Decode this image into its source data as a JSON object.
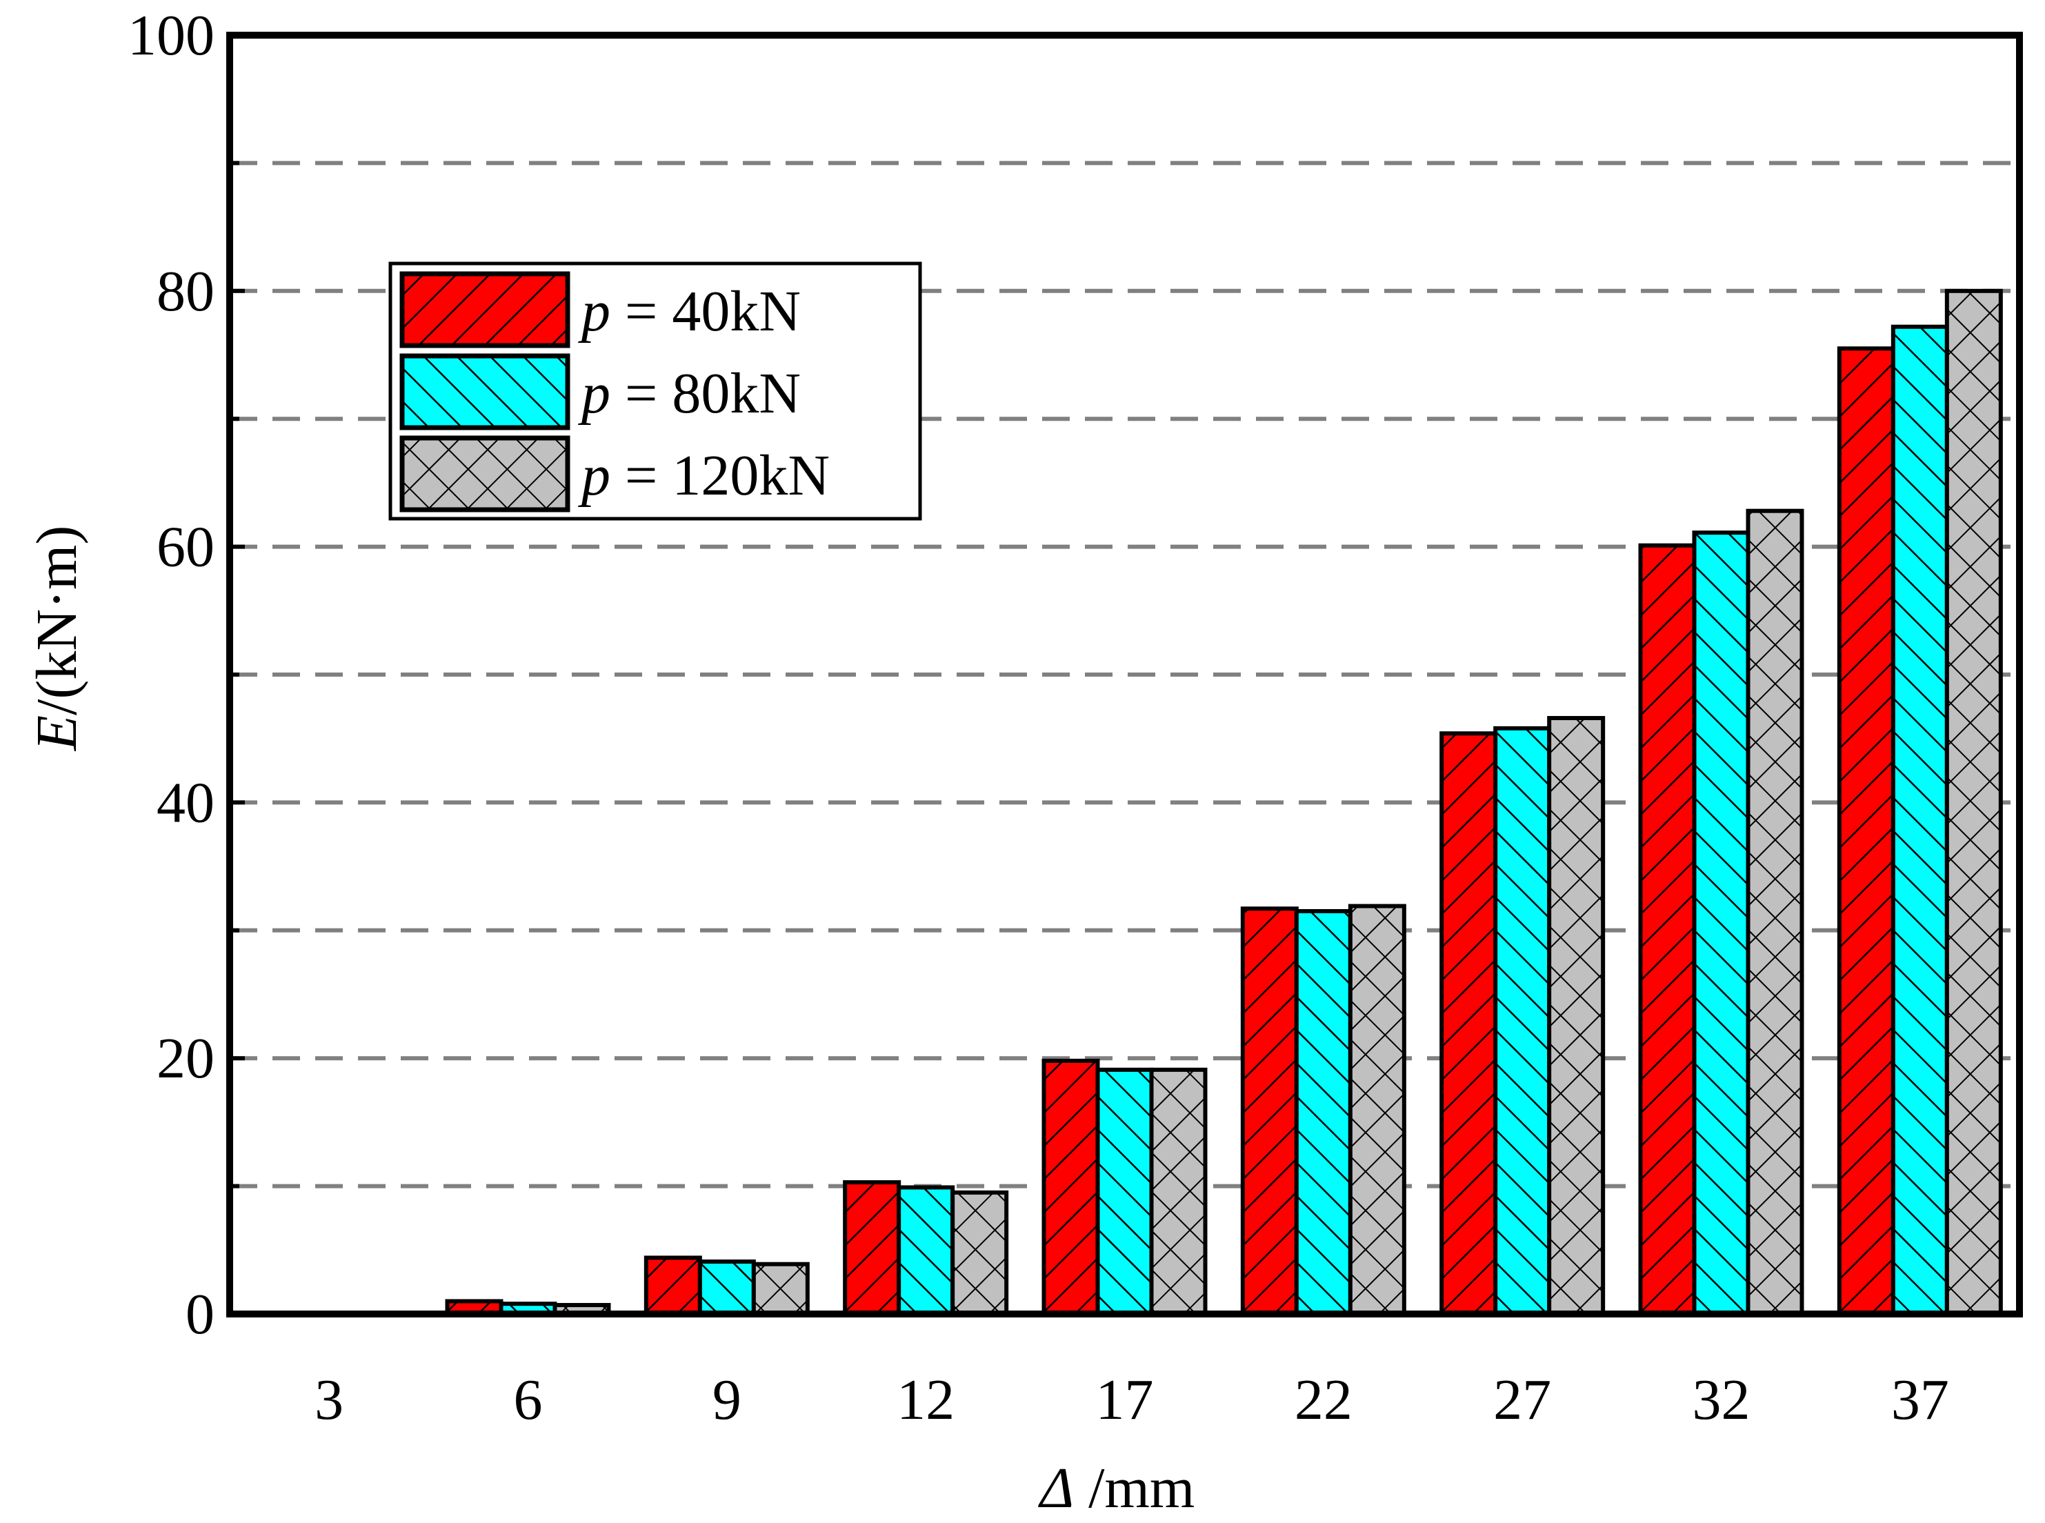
{
  "chart_data": {
    "type": "bar",
    "title": "",
    "xlabel_italic": "Δ",
    "xlabel_rest": " /mm",
    "ylabel_italic": "E",
    "ylabel_rest": "/(kN·m)",
    "categories": [
      "3",
      "6",
      "9",
      "12",
      "17",
      "22",
      "27",
      "32",
      "37"
    ],
    "ylim": [
      0,
      100
    ],
    "yticks": [
      0,
      20,
      40,
      60,
      80,
      100
    ],
    "ytick_labels": [
      "0",
      "20",
      "40",
      "60",
      "80",
      "100"
    ],
    "grid_values": [
      10,
      20,
      30,
      40,
      50,
      60,
      70,
      80,
      90
    ],
    "grid": "horizontal dashed",
    "legend_position": "upper-left",
    "series": [
      {
        "name_italic": "p",
        "name_rest": " = 40kN",
        "color": "#ff0000",
        "pattern": "forward-diagonal",
        "values": [
          0,
          1.0,
          4.4,
          10.3,
          19.8,
          31.7,
          45.4,
          60.1,
          75.5
        ]
      },
      {
        "name_italic": "p",
        "name_rest": " = 80kN",
        "color": "#00ffff",
        "pattern": "backward-diagonal",
        "values": [
          0,
          0.8,
          4.1,
          9.9,
          19.1,
          31.5,
          45.8,
          61.1,
          77.2
        ]
      },
      {
        "name_italic": "p",
        "name_rest": " = 120kN",
        "color": "#c0c0c0",
        "pattern": "crosshatch",
        "values": [
          0,
          0.7,
          3.9,
          9.5,
          19.1,
          31.9,
          46.6,
          62.8,
          80.0
        ]
      }
    ]
  }
}
